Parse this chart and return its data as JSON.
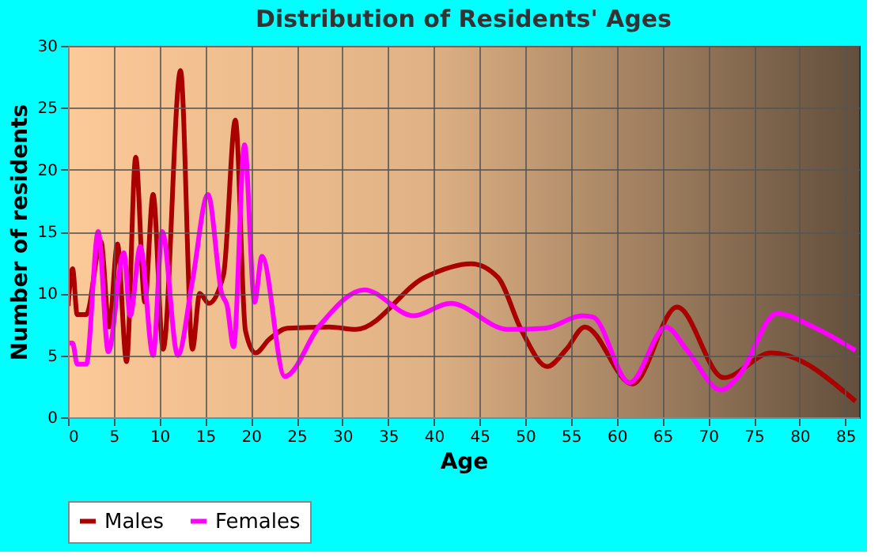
{
  "chart_data": {
    "type": "line",
    "title": "Distribution of Residents' Ages",
    "xlabel": "Age",
    "ylabel": "Number of residents",
    "xlim": [
      0,
      86.5
    ],
    "xticks": [
      0,
      5,
      10,
      15,
      20,
      25,
      30,
      35,
      40,
      45,
      50,
      55,
      60,
      65,
      70,
      75,
      80,
      85
    ],
    "ylim": [
      0,
      30
    ],
    "yticks": [
      0,
      5,
      10,
      15,
      20,
      25,
      30
    ],
    "grid": true,
    "legend": "bottom",
    "marker": "none",
    "line_style": "solid",
    "series": [
      {
        "name": "Males",
        "color": "#aa0000",
        "x": [
          0,
          0.5,
          1,
          2,
          3.6,
          4.5,
          5.4,
          6.4,
          7.4,
          8.4,
          9.3,
          10.4,
          12.3,
          13.6,
          14.4,
          15.4,
          17,
          18.3,
          19.4,
          20.5,
          22,
          24,
          28.6,
          31.5,
          39,
          44.1,
          47,
          49.6,
          52.4,
          54.5,
          56.5,
          61.7,
          66.6,
          71.7,
          76.9,
          86.1
        ],
        "values": [
          9,
          12,
          8.3,
          8.3,
          14.2,
          7.3,
          14,
          4.5,
          21,
          9.3,
          18,
          5.5,
          28,
          5.5,
          10,
          9.2,
          11.5,
          24,
          7,
          5.2,
          6.3,
          7.2,
          7.3,
          7.1,
          11.3,
          12.4,
          11.3,
          7,
          4.1,
          5.5,
          7.3,
          2.7,
          8.9,
          3.2,
          5.2,
          1.3
        ]
      },
      {
        "name": "Females",
        "color": "#ff00ff",
        "x": [
          0,
          0.5,
          1,
          2,
          3.3,
          4.4,
          6.1,
          6.8,
          7.9,
          9.3,
          10.3,
          12,
          13.6,
          15.3,
          16.8,
          17.4,
          18.1,
          19.3,
          20.4,
          21.2,
          23.7,
          27.5,
          32.4,
          37.8,
          41.8,
          48.1,
          52.2,
          56.2,
          57.4,
          61.4,
          65.4,
          67.7,
          71.4,
          73.4,
          77.5,
          81.5,
          86.1
        ],
        "values": [
          6,
          6,
          4.3,
          4.3,
          15,
          5.3,
          13.3,
          8.2,
          13.8,
          5,
          15,
          5,
          11,
          18,
          10,
          9,
          5.7,
          22,
          9.3,
          13,
          3.3,
          7.4,
          10.3,
          8.2,
          9.2,
          7.1,
          7.2,
          8.2,
          8.1,
          2.8,
          7.3,
          5.4,
          2.2,
          3.4,
          8.4,
          7.3,
          5.4
        ]
      }
    ]
  }
}
